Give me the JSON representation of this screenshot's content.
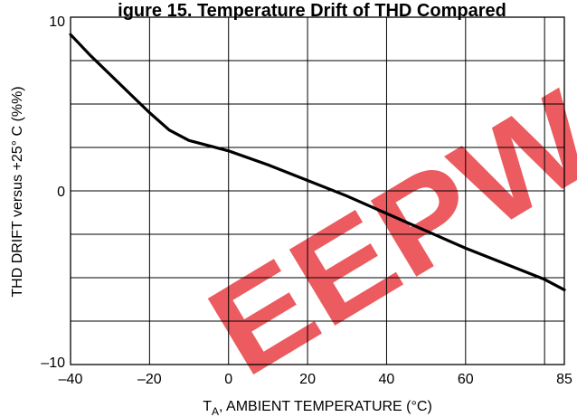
{
  "chart_data": {
    "type": "line",
    "title": "igure 15. Temperature Drift of THD Compared",
    "xlabel": {
      "main": "T",
      "sub": "A",
      "rest": ", AMBIENT TEMPERATURE (°C)"
    },
    "ylabel": "THD DRIFT versus +25° C (%%)",
    "xlim": [
      -40,
      85
    ],
    "ylim": [
      -10,
      10
    ],
    "x_tick_labels": [
      {
        "value": -40,
        "label": "–40"
      },
      {
        "value": -20,
        "label": "–20"
      },
      {
        "value": 0,
        "label": "0"
      },
      {
        "value": 20,
        "label": "20"
      },
      {
        "value": 40,
        "label": "40"
      },
      {
        "value": 60,
        "label": "60"
      },
      {
        "value": 85,
        "label": "85"
      }
    ],
    "y_tick_labels": [
      {
        "value": 10,
        "label": "10"
      },
      {
        "value": 0,
        "label": "0"
      },
      {
        "value": -10,
        "label": "–10"
      }
    ],
    "x_gridlines": [
      -20,
      0,
      20,
      40,
      60,
      80
    ],
    "y_gridlines": [
      7.5,
      5,
      2.5,
      0,
      -2.5,
      -5,
      -7.5
    ],
    "grid": true,
    "series": [
      {
        "x": [
          -40,
          -35,
          -30,
          -25,
          -20,
          -15,
          -10,
          -5,
          0,
          10,
          20,
          30,
          40,
          50,
          60,
          70,
          80,
          85
        ],
        "y": [
          9.0,
          7.8,
          6.7,
          5.6,
          4.5,
          3.5,
          2.9,
          2.6,
          2.3,
          1.5,
          0.6,
          -0.3,
          -1.3,
          -2.3,
          -3.3,
          -4.2,
          -5.1,
          -5.7
        ],
        "color": "#000000"
      }
    ],
    "watermark": {
      "text": "EEPW",
      "color": "#e8383c"
    }
  }
}
